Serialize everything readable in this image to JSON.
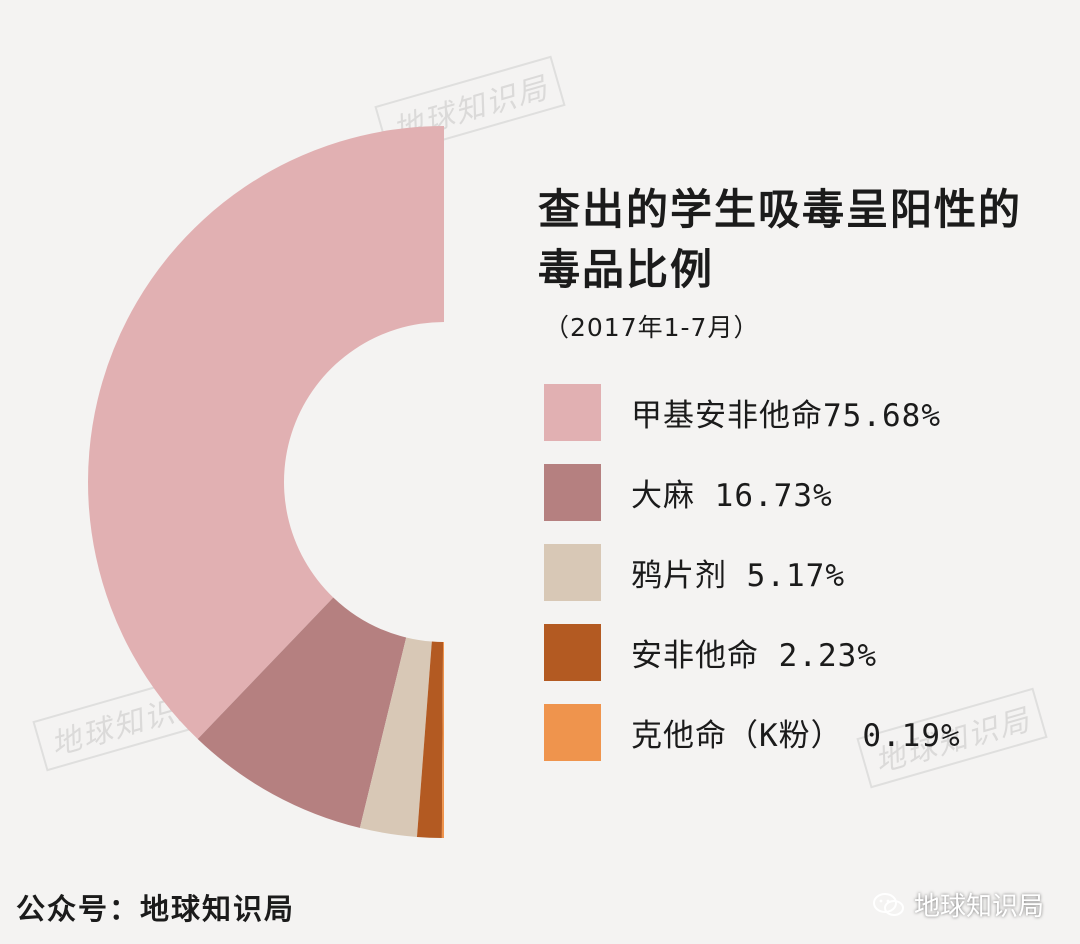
{
  "colors": {
    "background": "#f4f3f2",
    "text": "#1b1b1b"
  },
  "chart_data": {
    "type": "pie",
    "variant": "half-donut",
    "title": "查出的学生吸毒呈阳性的毒品比例",
    "subtitle": "（2017年1-7月）",
    "unit": "%",
    "legend_placement": "right",
    "categories": [
      "甲基安非他命",
      "大麻",
      "鸦片剂",
      "安非他命",
      "克他命（K粉）"
    ],
    "values": [
      75.68,
      16.73,
      5.17,
      2.23,
      0.19
    ],
    "colors": [
      "#e1b0b2",
      "#b58080",
      "#d8c8b6",
      "#b35a22",
      "#ef944d"
    ],
    "legend_labels": [
      "甲基安非他命75.68%",
      "大麻 16.73%",
      "鸦片剂 5.17%",
      "安非他命 2.23%",
      "克他命（K粉） 0.19%"
    ]
  },
  "footer": {
    "source": "公众号：地球知识局",
    "badge_icon": "wechat-icon",
    "badge_label": "地球知识局"
  },
  "watermarks": [
    "地球知识局",
    "地球知识局",
    "地球知识局"
  ]
}
